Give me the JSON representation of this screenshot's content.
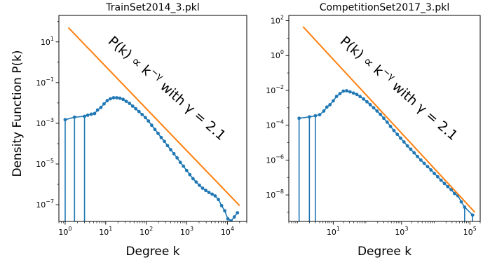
{
  "figure": {
    "ylabel": "Density Function P(k)"
  },
  "colors": {
    "data_series": "#1f77b4",
    "fit_line": "#ff7f0e",
    "axes": "#000000",
    "background": "#ffffff"
  },
  "chart_data": [
    {
      "type": "line",
      "title": "TrainSet2014_3.pkl",
      "xlabel": "Degree k",
      "ylabel": "Density Function P(k)",
      "xscale": "log",
      "yscale": "log",
      "xlim": [
        0.7,
        30000
      ],
      "ylim": [
        1.5e-08,
        200
      ],
      "grid": false,
      "xticks": [
        {
          "value": 1,
          "label": "10^0"
        },
        {
          "value": 10,
          "label": "10^1"
        },
        {
          "value": 100,
          "label": "10^2"
        },
        {
          "value": 1000,
          "label": "10^3"
        },
        {
          "value": 10000,
          "label": "10^4"
        }
      ],
      "yticks": [
        {
          "value": 1e-07,
          "label": "10^-7"
        },
        {
          "value": 1e-05,
          "label": "10^-5"
        },
        {
          "value": 0.001,
          "label": "10^-3"
        },
        {
          "value": 0.1,
          "label": "10^-1"
        },
        {
          "value": 10,
          "label": "10^1"
        }
      ],
      "annotation": {
        "text": "P(k) ∝ k^−γ with γ = 2.1",
        "rotation_deg": 41
      },
      "series": [
        {
          "kind": "points-with-stems",
          "color": "#1f77b4",
          "x": [
            1,
            1.7,
            3,
            3.6,
            4.4,
            5.3,
            6.3,
            7.6,
            9.1,
            10.9,
            13,
            15.6,
            18.7,
            22.4,
            26.8,
            32,
            38.5,
            46,
            55,
            66,
            79,
            95,
            113,
            136,
            163,
            195,
            233,
            279,
            334,
            400,
            480,
            575,
            690,
            825,
            990,
            1185,
            1420,
            1700,
            2040,
            2440,
            2930,
            3500,
            4200,
            5000,
            6000,
            7200,
            8600,
            10300,
            12300,
            14800,
            17700
          ],
          "y": [
            0.0015,
            0.002,
            0.0022,
            0.0025,
            0.0028,
            0.003,
            0.0045,
            0.006,
            0.009,
            0.013,
            0.016,
            0.018,
            0.018,
            0.017,
            0.015,
            0.012,
            0.0095,
            0.007,
            0.0052,
            0.0038,
            0.0027,
            0.0019,
            0.0013,
            0.0008,
            0.0005,
            0.00032,
            0.0002,
            0.00013,
            8e-05,
            5e-05,
            3.2e-05,
            2e-05,
            1.2e-05,
            7.8e-06,
            4.8e-06,
            3e-06,
            1.9e-06,
            1.3e-06,
            9e-07,
            6.5e-07,
            5e-07,
            4e-07,
            3.3e-07,
            2.7e-07,
            1.8e-07,
            9e-08,
            5e-08,
            2e-08,
            1.6e-08,
            2.5e-08,
            4e-08
          ],
          "stem_indices": [
            0,
            1,
            2
          ]
        },
        {
          "kind": "power-law",
          "color": "#ff7f0e",
          "gamma": 2.1,
          "x": [
            1.2,
            20000
          ],
          "y": [
            50,
            9e-08
          ]
        }
      ]
    },
    {
      "type": "line",
      "title": "CompetitionSet2017_3.pkl",
      "xlabel": "Degree k",
      "ylabel": "",
      "xscale": "log",
      "yscale": "log",
      "xlim": [
        0.5,
        200000
      ],
      "ylim": [
        3e-10,
        200
      ],
      "grid": false,
      "xticks": [
        {
          "value": 10,
          "label": "10^1"
        },
        {
          "value": 1000,
          "label": "10^3"
        },
        {
          "value": 100000,
          "label": "10^5"
        }
      ],
      "yticks": [
        {
          "value": 1e-08,
          "label": "10^-8"
        },
        {
          "value": 1e-06,
          "label": "10^-6"
        },
        {
          "value": 0.0001,
          "label": "10^-4"
        },
        {
          "value": 0.01,
          "label": "10^-2"
        },
        {
          "value": 1,
          "label": "10^0"
        },
        {
          "value": 100,
          "label": "10^2"
        }
      ],
      "annotation": {
        "text": "P(k) ∝ k^−γ with γ = 2.1",
        "rotation_deg": 41
      },
      "series": [
        {
          "kind": "points-with-stems",
          "color": "#1f77b4",
          "x": [
            1,
            2,
            3,
            4,
            5.3,
            6.5,
            8,
            10,
            12.5,
            15.7,
            19.7,
            24.7,
            31,
            39,
            49,
            61,
            77,
            97,
            121,
            152,
            191,
            240,
            301,
            378,
            474,
            595,
            747,
            937,
            1176,
            1476,
            1853,
            2325,
            2918,
            3662,
            4596,
            5768,
            7239,
            9085,
            11401,
            14310,
            17960,
            22540,
            28290,
            35500,
            44550,
            55910,
            70000,
            120000
          ],
          "y": [
            0.00025,
            0.0003,
            0.00035,
            0.0004,
            0.00065,
            0.0011,
            0.0015,
            0.0025,
            0.0045,
            0.0065,
            0.009,
            0.0095,
            0.0082,
            0.007,
            0.0058,
            0.0044,
            0.0032,
            0.0022,
            0.0015,
            0.001,
            0.00065,
            0.00042,
            0.00025,
            0.00015,
            8.5e-05,
            5e-05,
            3e-05,
            1.8e-05,
            1.1e-05,
            6.5e-06,
            4.2e-06,
            2.6e-06,
            1.6e-06,
            1e-06,
            6.5e-07,
            4.2e-07,
            2.7e-07,
            1.7e-07,
            1.1e-07,
            7e-08,
            4.5e-08,
            3e-08,
            2e-08,
            1.2e-08,
            9e-09,
            4e-09,
            2e-09,
            7e-10
          ],
          "stem_indices": [
            0,
            1,
            2,
            46,
            47
          ]
        },
        {
          "kind": "power-law",
          "color": "#ff7f0e",
          "gamma": 2.1,
          "x": [
            1.3,
            140000
          ],
          "y": [
            45,
            1e-09
          ]
        }
      ]
    }
  ]
}
